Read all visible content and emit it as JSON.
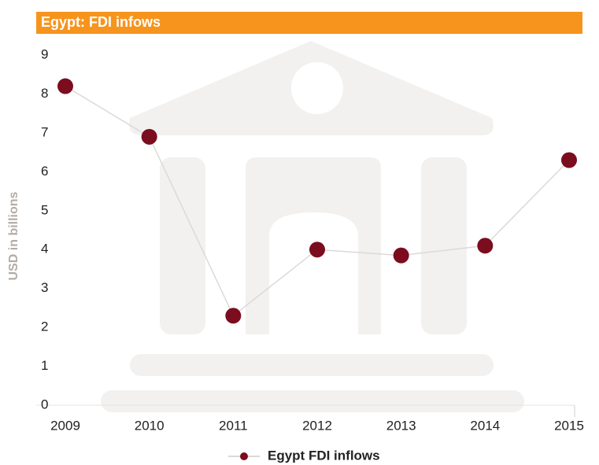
{
  "chart_data": {
    "type": "line",
    "title": "Egypt: FDI infows",
    "y_label": "USD in billions",
    "categories": [
      "2009",
      "2010",
      "2011",
      "2012",
      "2013",
      "2014",
      "2015"
    ],
    "series": [
      {
        "name": "Egypt FDI inflows",
        "color": "#7b0d1e",
        "values": [
          8.2,
          6.9,
          2.3,
          4.0,
          3.85,
          4.1,
          6.3
        ]
      }
    ],
    "ylim": [
      0,
      9
    ],
    "yticks": [
      0,
      1,
      2,
      3,
      4,
      5,
      6,
      7,
      8,
      9
    ],
    "grid": false,
    "legend": "bottom"
  }
}
